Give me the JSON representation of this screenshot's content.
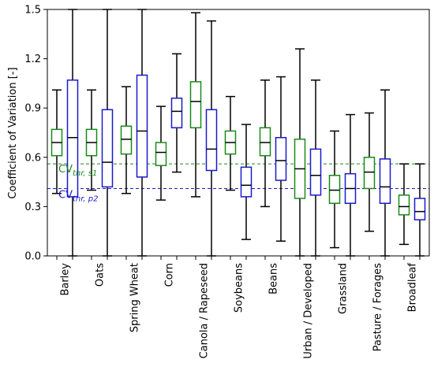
{
  "chart_data": {
    "type": "boxplot",
    "ylabel": "Coefficient of Variation [-]",
    "ylim": [
      0.0,
      1.5
    ],
    "yticks": [
      "0.0",
      "0.3",
      "0.6",
      "0.9",
      "1.2",
      "1.5"
    ],
    "ytick_values": [
      0.0,
      0.3,
      0.6,
      0.9,
      1.2,
      1.5
    ],
    "grid": false,
    "categories": [
      "Barley",
      "Oats",
      "Spring Wheat",
      "Corn",
      "Canola / Rapeseed",
      "Soybeans",
      "Beans",
      "Urban / Developed",
      "Grassland",
      "Pasture / Forages",
      "Broadleaf"
    ],
    "series": [
      {
        "color": "#1a8a1a",
        "boxes": [
          {
            "whislo": 0.38,
            "q1": 0.61,
            "med": 0.69,
            "q3": 0.77,
            "whishi": 1.01
          },
          {
            "whislo": 0.4,
            "q1": 0.61,
            "med": 0.69,
            "q3": 0.77,
            "whishi": 1.01
          },
          {
            "whislo": 0.38,
            "q1": 0.62,
            "med": 0.71,
            "q3": 0.79,
            "whishi": 1.03
          },
          {
            "whislo": 0.34,
            "q1": 0.55,
            "med": 0.63,
            "q3": 0.69,
            "whishi": 0.91
          },
          {
            "whislo": 0.36,
            "q1": 0.78,
            "med": 0.94,
            "q3": 1.06,
            "whishi": 1.48
          },
          {
            "whislo": 0.4,
            "q1": 0.62,
            "med": 0.69,
            "q3": 0.76,
            "whishi": 0.97
          },
          {
            "whislo": 0.3,
            "q1": 0.61,
            "med": 0.69,
            "q3": 0.78,
            "whishi": 1.07
          },
          {
            "whislo": 0.0,
            "q1": 0.35,
            "med": 0.53,
            "q3": 0.71,
            "whishi": 1.26
          },
          {
            "whislo": 0.05,
            "q1": 0.32,
            "med": 0.4,
            "q3": 0.49,
            "whishi": 0.76
          },
          {
            "whislo": 0.15,
            "q1": 0.41,
            "med": 0.51,
            "q3": 0.6,
            "whishi": 0.87
          },
          {
            "whislo": 0.07,
            "q1": 0.25,
            "med": 0.3,
            "q3": 0.37,
            "whishi": 0.56
          }
        ]
      },
      {
        "color": "#1a1acc",
        "boxes": [
          {
            "whislo": 0.0,
            "q1": 0.36,
            "med": 0.72,
            "q3": 1.07,
            "whishi": 1.5
          },
          {
            "whislo": 0.0,
            "q1": 0.42,
            "med": 0.57,
            "q3": 0.89,
            "whishi": 1.5
          },
          {
            "whislo": 0.0,
            "q1": 0.48,
            "med": 0.76,
            "q3": 1.1,
            "whishi": 1.5
          },
          {
            "whislo": 0.51,
            "q1": 0.78,
            "med": 0.88,
            "q3": 0.96,
            "whishi": 1.23
          },
          {
            "whislo": 0.0,
            "q1": 0.52,
            "med": 0.65,
            "q3": 0.89,
            "whishi": 1.43
          },
          {
            "whislo": 0.1,
            "q1": 0.36,
            "med": 0.43,
            "q3": 0.54,
            "whishi": 0.8
          },
          {
            "whislo": 0.09,
            "q1": 0.46,
            "med": 0.58,
            "q3": 0.72,
            "whishi": 1.09
          },
          {
            "whislo": 0.0,
            "q1": 0.37,
            "med": 0.49,
            "q3": 0.65,
            "whishi": 1.07
          },
          {
            "whislo": 0.0,
            "q1": 0.32,
            "med": 0.41,
            "q3": 0.5,
            "whishi": 0.86
          },
          {
            "whislo": 0.0,
            "q1": 0.32,
            "med": 0.42,
            "q3": 0.59,
            "whishi": 1.01
          },
          {
            "whislo": 0.0,
            "q1": 0.22,
            "med": 0.27,
            "q3": 0.35,
            "whishi": 0.56
          }
        ]
      }
    ],
    "thresholds": [
      {
        "value": 0.56,
        "label_main": "CV",
        "label_sub": "thr, s1",
        "color": "#1a8a1a"
      },
      {
        "value": 0.41,
        "label_main": "CV",
        "label_sub": "thr, p2",
        "color": "#1a1acc"
      }
    ]
  }
}
